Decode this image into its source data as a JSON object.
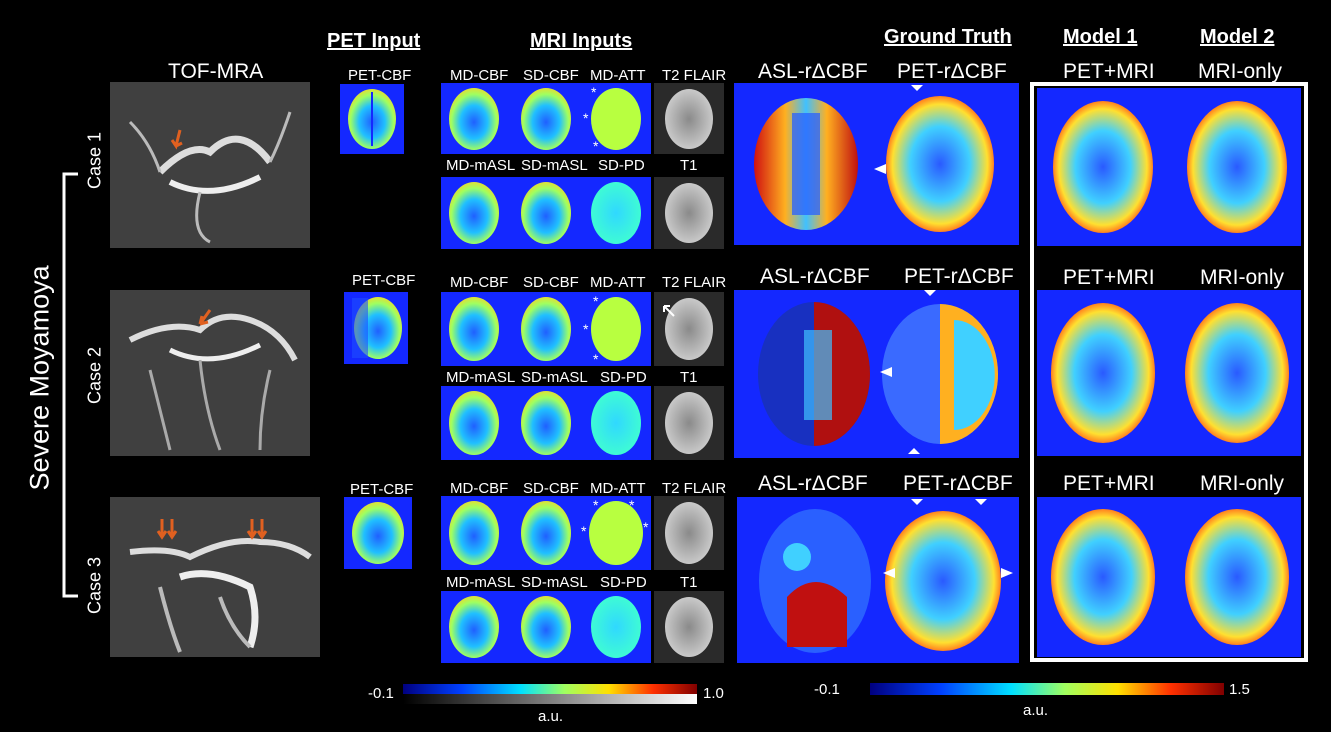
{
  "titles": {
    "tof": "TOF-MRA",
    "pet_input": "PET Input",
    "mri_inputs": "MRI Inputs",
    "ground_truth": "Ground Truth",
    "model1": "Model 1",
    "model2": "Model 2"
  },
  "group_label": "Severe Moyamoya",
  "cases": [
    {
      "name": "Case 1",
      "pet": "PET-CBF",
      "mri_top": [
        "MD-CBF",
        "SD-CBF",
        "MD-ATT",
        "T2 FLAIR"
      ],
      "mri_bot": [
        "MD-mASL",
        "SD-mASL",
        "SD-PD",
        "T1"
      ],
      "asl": "ASL-rΔCBF",
      "gt": "PET-rΔCBF",
      "m1": "PET+MRI",
      "m2": "MRI-only"
    },
    {
      "name": "Case 2",
      "pet": "PET-CBF",
      "mri_top": [
        "MD-CBF",
        "SD-CBF",
        "MD-ATT",
        "T2 FLAIR"
      ],
      "mri_bot": [
        "MD-mASL",
        "SD-mASL",
        "SD-PD",
        "T1"
      ],
      "asl": "ASL-rΔCBF",
      "gt": "PET-rΔCBF",
      "m1": "PET+MRI",
      "m2": "MRI-only"
    },
    {
      "name": "Case 3",
      "pet": "PET-CBF",
      "mri_top": [
        "MD-CBF",
        "SD-CBF",
        "MD-ATT",
        "T2 FLAIR"
      ],
      "mri_bot": [
        "MD-mASL",
        "SD-mASL",
        "SD-PD",
        "T1"
      ],
      "asl": "ASL-rΔCBF",
      "gt": "PET-rΔCBF",
      "m1": "PET+MRI",
      "m2": "MRI-only"
    }
  ],
  "colorbar_left": {
    "min": "-0.1",
    "max": "1.0",
    "unit": "a.u."
  },
  "colorbar_right": {
    "min": "-0.1",
    "max": "1.5",
    "unit": "a.u."
  },
  "colors": {
    "background": "#000000",
    "panel_blue": "#1428ff",
    "frame": "#ffffff",
    "arrow": "#e06020"
  }
}
